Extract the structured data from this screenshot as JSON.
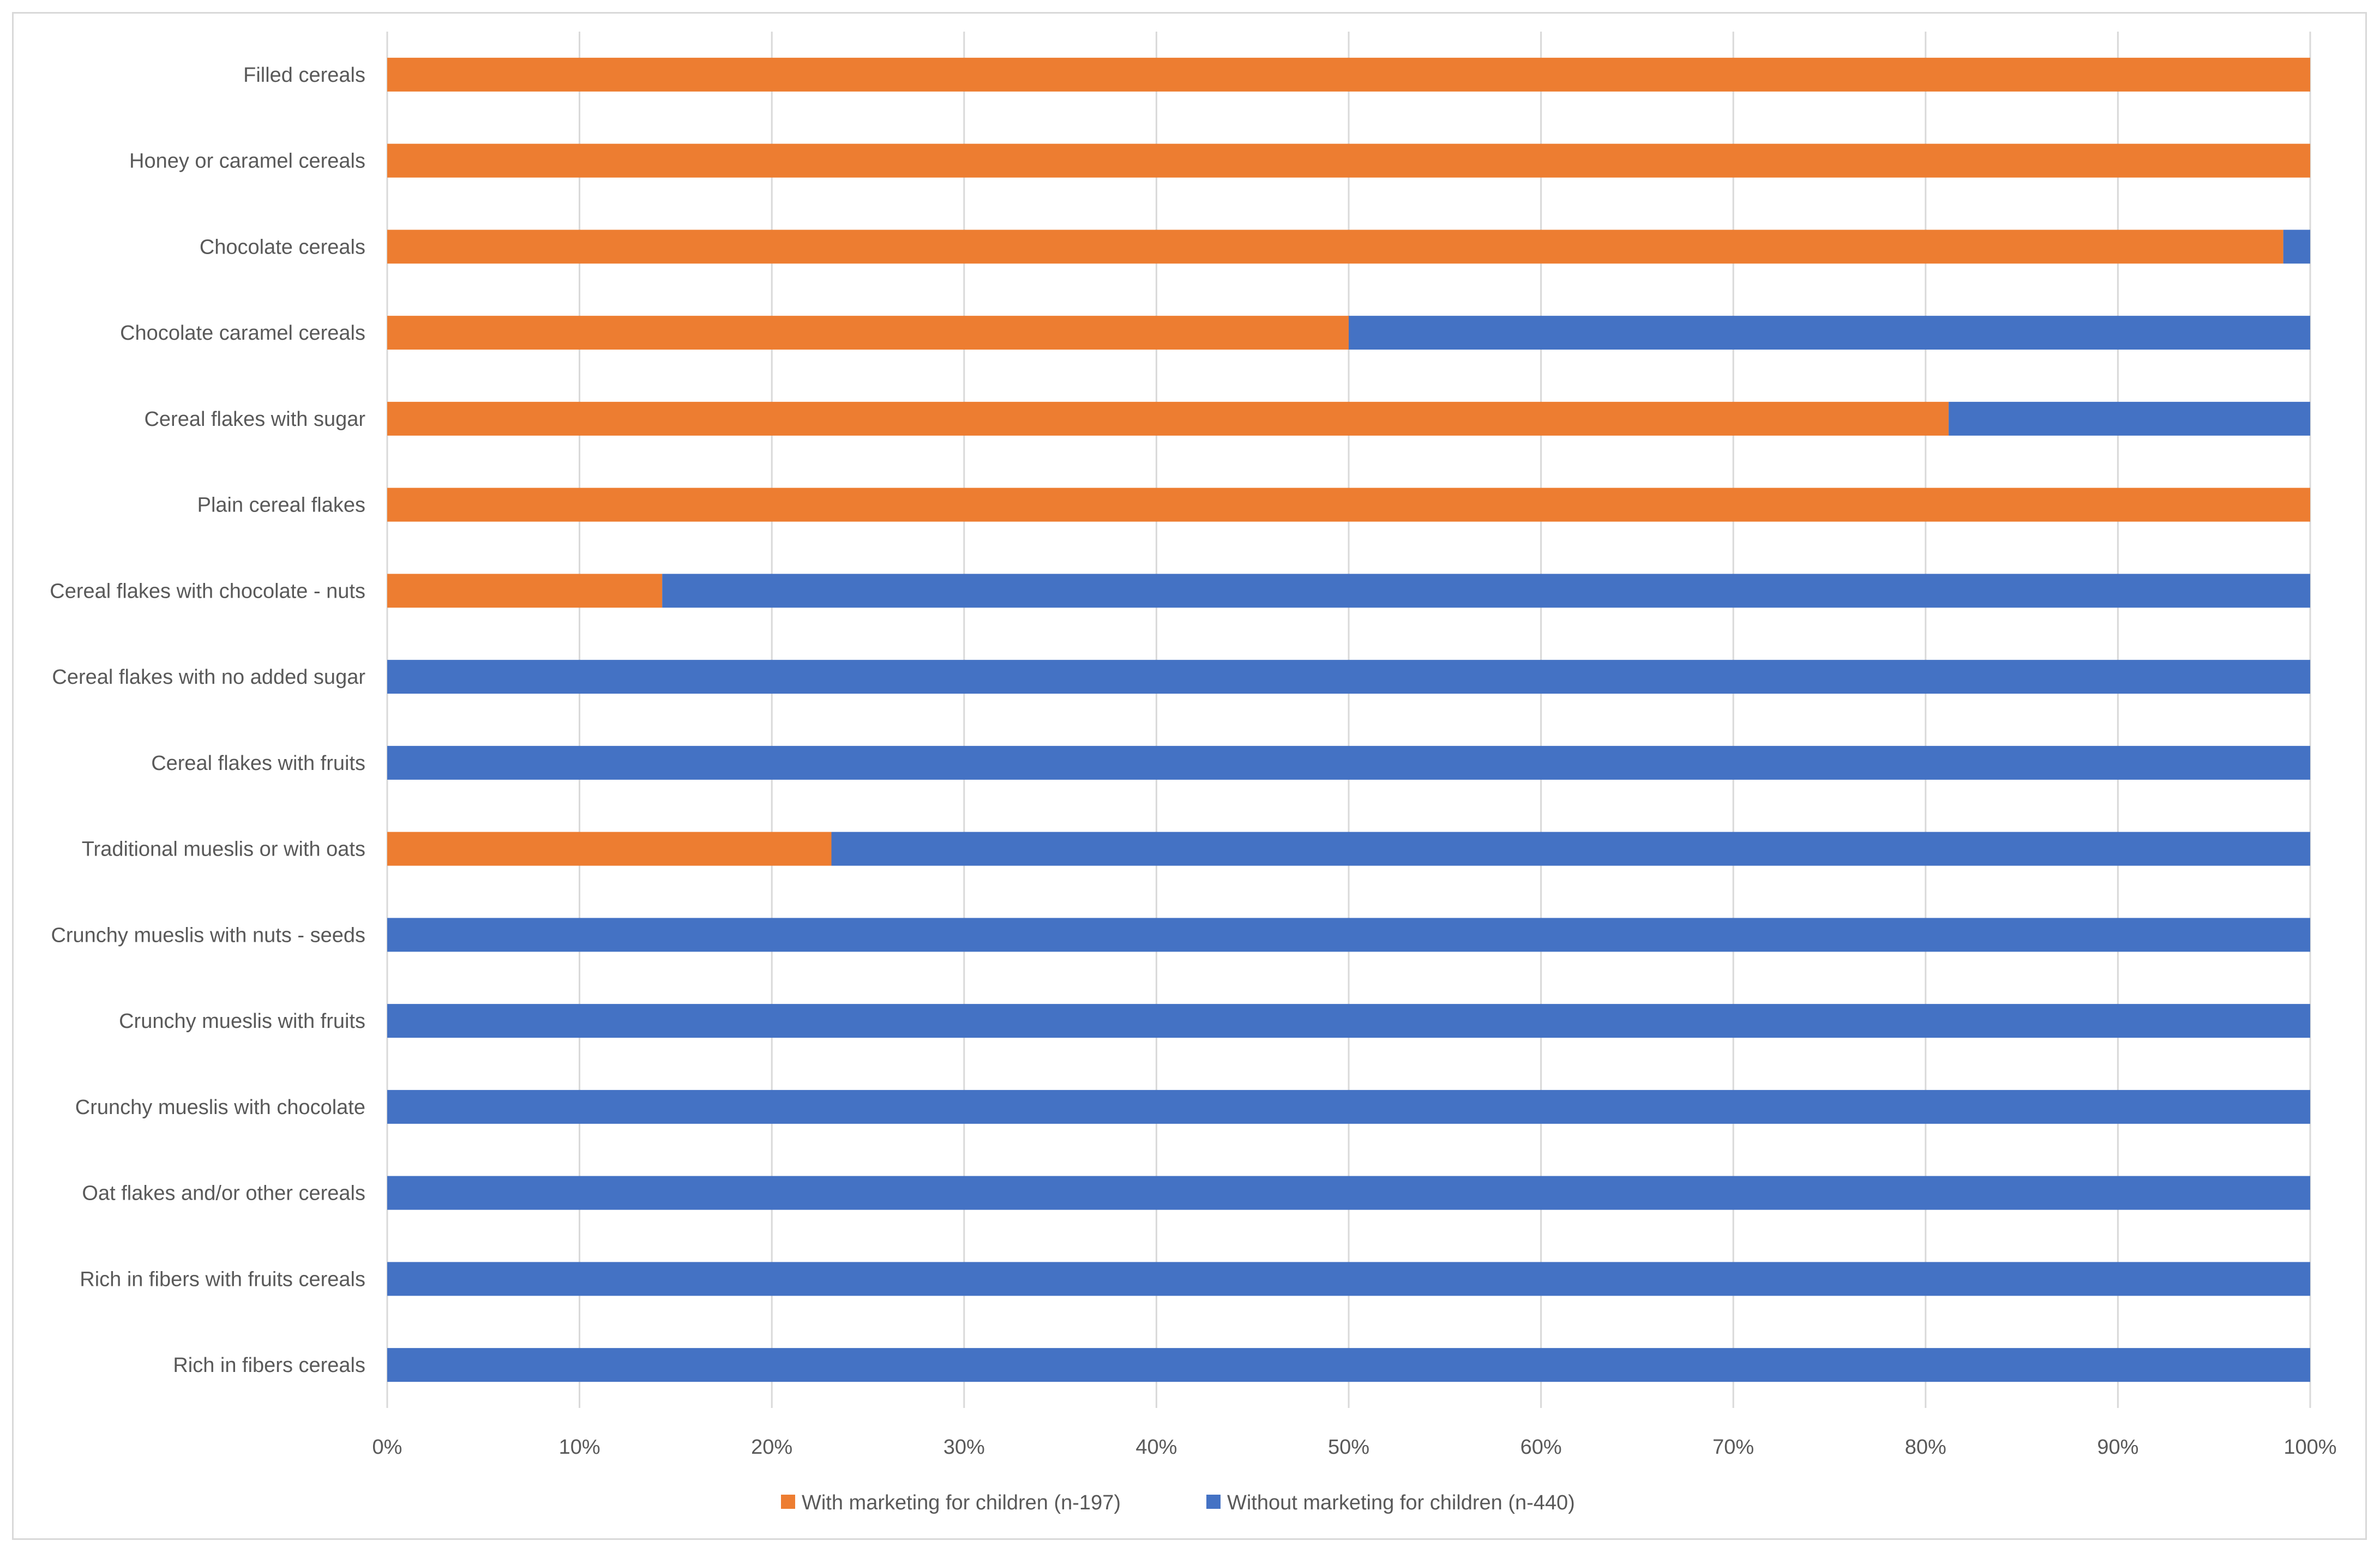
{
  "chart_data": {
    "type": "bar",
    "orientation": "horizontal",
    "stacked": "percent",
    "title": "",
    "xlabel": "",
    "ylabel": "",
    "xlim": [
      0,
      100
    ],
    "x_ticks": [
      "0%",
      "10%",
      "20%",
      "30%",
      "40%",
      "50%",
      "60%",
      "70%",
      "80%",
      "90%",
      "100%"
    ],
    "grid": "vertical",
    "legend_position": "bottom",
    "categories": [
      "Filled cereals",
      "Honey or caramel cereals",
      "Chocolate cereals",
      "Chocolate caramel cereals",
      "Cereal flakes with sugar",
      "Plain cereal flakes",
      "Cereal flakes with chocolate - nuts",
      "Cereal flakes with no added sugar",
      "Cereal flakes with fruits",
      "Traditional mueslis or with oats",
      "Crunchy mueslis with nuts - seeds",
      "Crunchy mueslis with fruits",
      "Crunchy mueslis with chocolate",
      "Oat flakes and/or other cereals",
      "Rich in fibers with fruits cereals",
      "Rich in fibers cereals"
    ],
    "series": [
      {
        "name": "With marketing for children (n-197)",
        "color": "#ED7D31",
        "values": [
          100,
          100,
          98.6,
          50,
          81.2,
          100,
          14.3,
          0,
          0,
          23.1,
          0,
          0,
          0,
          0,
          0,
          0
        ]
      },
      {
        "name": "Without marketing for children (n-440)",
        "color": "#4472C4",
        "values": [
          0,
          0,
          1.4,
          50,
          18.8,
          0,
          85.7,
          100,
          100,
          76.9,
          100,
          100,
          100,
          100,
          100,
          100
        ]
      }
    ]
  }
}
